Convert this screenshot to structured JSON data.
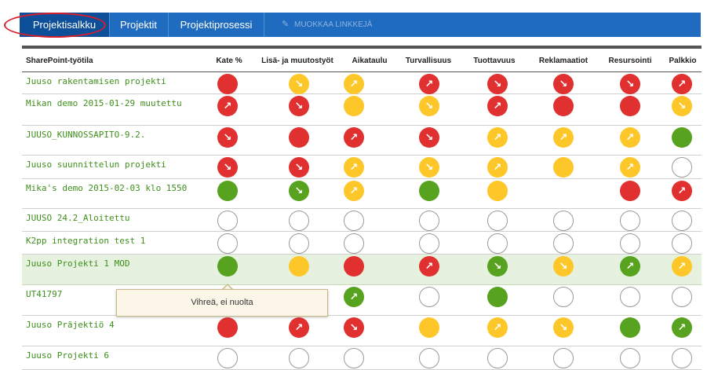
{
  "nav": {
    "tabs": [
      {
        "label": "Projektisalkku",
        "active": true
      },
      {
        "label": "Projektit",
        "active": false
      },
      {
        "label": "Projektiprosessi",
        "active": false
      }
    ],
    "edit_links_label": "MUOKKAA LINKKEJÄ"
  },
  "colors": {
    "red": "#e03030",
    "yellow": "#fec729",
    "green": "#57a21e",
    "nav": "#1f6bbf",
    "link": "#3f8f1c"
  },
  "table": {
    "headers": [
      "SharePoint-työtila",
      "Kate %",
      "Lisä- ja muutostyöt",
      "Aikataulu",
      "Turvallisuus",
      "Tuottavuus",
      "Reklamaatiot",
      "Resursointi",
      "Palkkio"
    ],
    "rows": [
      {
        "name": "Juuso rakentamisen projekti",
        "cells": [
          [
            "red",
            ""
          ],
          [
            "yellow",
            "down"
          ],
          [
            "yellow",
            "up"
          ],
          [
            "red",
            "up"
          ],
          [
            "red",
            "down"
          ],
          [
            "red",
            "down"
          ],
          [
            "red",
            "down"
          ],
          [
            "red",
            "up"
          ]
        ]
      },
      {
        "name": "Mikan demo 2015-01-29 muutettu",
        "cells": [
          [
            "red",
            "up"
          ],
          [
            "red",
            "down"
          ],
          [
            "yellow",
            ""
          ],
          [
            "yellow",
            "down"
          ],
          [
            "red",
            "up"
          ],
          [
            "red",
            ""
          ],
          [
            "red",
            ""
          ],
          [
            "yellow",
            "down"
          ]
        ]
      },
      {
        "name": "JUUSO_KUNNOSSAPITO-9.2.",
        "cells": [
          [
            "red",
            "down"
          ],
          [
            "red",
            ""
          ],
          [
            "red",
            "up"
          ],
          [
            "red",
            "down"
          ],
          [
            "yellow",
            "up"
          ],
          [
            "yellow",
            "up"
          ],
          [
            "yellow",
            "up"
          ],
          [
            "green",
            ""
          ]
        ]
      },
      {
        "name": "Juuso suunnittelun projekti",
        "cells": [
          [
            "red",
            "down"
          ],
          [
            "red",
            "down"
          ],
          [
            "yellow",
            "up"
          ],
          [
            "yellow",
            "down"
          ],
          [
            "yellow",
            "up"
          ],
          [
            "yellow",
            ""
          ],
          [
            "yellow",
            "up"
          ],
          [
            "empty",
            ""
          ]
        ]
      },
      {
        "name": "Mika's demo 2015-02-03 klo 1550",
        "cells": [
          [
            "green",
            ""
          ],
          [
            "green",
            "down"
          ],
          [
            "yellow",
            "up"
          ],
          [
            "green",
            ""
          ],
          [
            "yellow",
            ""
          ],
          [
            "",
            ""
          ],
          [
            "red",
            ""
          ],
          [
            "red",
            "up"
          ]
        ]
      },
      {
        "name": "JUUSO 24.2_Aloitettu",
        "cells": [
          [
            "empty",
            ""
          ],
          [
            "empty",
            ""
          ],
          [
            "empty",
            ""
          ],
          [
            "empty",
            ""
          ],
          [
            "empty",
            ""
          ],
          [
            "empty",
            ""
          ],
          [
            "empty",
            ""
          ],
          [
            "empty",
            ""
          ]
        ]
      },
      {
        "name": "K2pp integration test 1",
        "cells": [
          [
            "empty",
            ""
          ],
          [
            "empty",
            ""
          ],
          [
            "empty",
            ""
          ],
          [
            "empty",
            ""
          ],
          [
            "empty",
            ""
          ],
          [
            "empty",
            ""
          ],
          [
            "empty",
            ""
          ],
          [
            "empty",
            ""
          ]
        ]
      },
      {
        "name": "Juuso Projekti 1 MOD",
        "selected": true,
        "cells": [
          [
            "green",
            ""
          ],
          [
            "yellow",
            ""
          ],
          [
            "red",
            ""
          ],
          [
            "red",
            "up"
          ],
          [
            "green",
            "down"
          ],
          [
            "yellow",
            "down"
          ],
          [
            "green",
            "up"
          ],
          [
            "yellow",
            "up"
          ]
        ]
      },
      {
        "name": "UT41797",
        "cells": [
          [
            "",
            ""
          ],
          [
            "",
            ""
          ],
          [
            "green",
            "up"
          ],
          [
            "empty",
            ""
          ],
          [
            "green",
            ""
          ],
          [
            "empty",
            ""
          ],
          [
            "empty",
            ""
          ],
          [
            "empty",
            ""
          ]
        ]
      },
      {
        "name": "Juuso Präjektiö 4",
        "cells": [
          [
            "red",
            ""
          ],
          [
            "red",
            "up"
          ],
          [
            "red",
            "down"
          ],
          [
            "yellow",
            ""
          ],
          [
            "yellow",
            "up"
          ],
          [
            "yellow",
            "down"
          ],
          [
            "green",
            ""
          ],
          [
            "green",
            "up"
          ]
        ]
      },
      {
        "name": "Juuso Projekti 6",
        "cells": [
          [
            "empty",
            ""
          ],
          [
            "empty",
            ""
          ],
          [
            "empty",
            ""
          ],
          [
            "empty",
            ""
          ],
          [
            "empty",
            ""
          ],
          [
            "empty",
            ""
          ],
          [
            "empty",
            ""
          ],
          [
            "empty",
            ""
          ]
        ]
      }
    ]
  },
  "tooltip": {
    "text": "Vihreä, ei nuolta"
  }
}
